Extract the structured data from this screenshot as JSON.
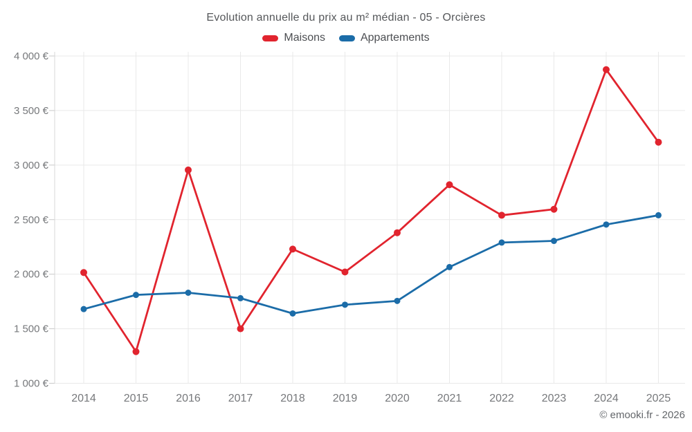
{
  "header": {
    "title": "Evolution annuelle du prix au m² médian - 05 - Orcières"
  },
  "legend": [
    {
      "label": "Maisons",
      "color": "#e1242e"
    },
    {
      "label": "Appartements",
      "color": "#1b6ca8"
    }
  ],
  "footer": {
    "credit": "© emooki.fr - 2026"
  },
  "colors": {
    "grid": "#e9e9e9",
    "axis": "#d7d7d7",
    "tick": "#c9c9c9",
    "axis_label": "#76787b"
  },
  "chart_data": {
    "type": "line",
    "title": "Evolution annuelle du prix au m² médian - 05 - Orcières",
    "categories": [
      "2014",
      "2015",
      "2016",
      "2017",
      "2018",
      "2019",
      "2020",
      "2021",
      "2022",
      "2023",
      "2024",
      "2025"
    ],
    "series": [
      {
        "name": "Maisons",
        "color": "#e1242e",
        "values": [
          2015,
          1290,
          2955,
          1500,
          2230,
          2020,
          2380,
          2820,
          2540,
          2595,
          3875,
          3210
        ]
      },
      {
        "name": "Appartements",
        "color": "#1b6ca8",
        "values": [
          1680,
          1810,
          1830,
          1780,
          1640,
          1720,
          1755,
          2065,
          2290,
          2305,
          2455,
          2540
        ]
      }
    ],
    "xlabel": "",
    "ylabel": "",
    "ylim": [
      1000,
      4000
    ],
    "ytick_step": 500,
    "ytick_labels": [
      "1 000 €",
      "1 500 €",
      "2 000 €",
      "2 500 €",
      "3 000 €",
      "3 500 €",
      "4 000 €"
    ],
    "grid": true,
    "legend_position": "top",
    "annotations": [
      "© emooki.fr - 2026"
    ]
  }
}
